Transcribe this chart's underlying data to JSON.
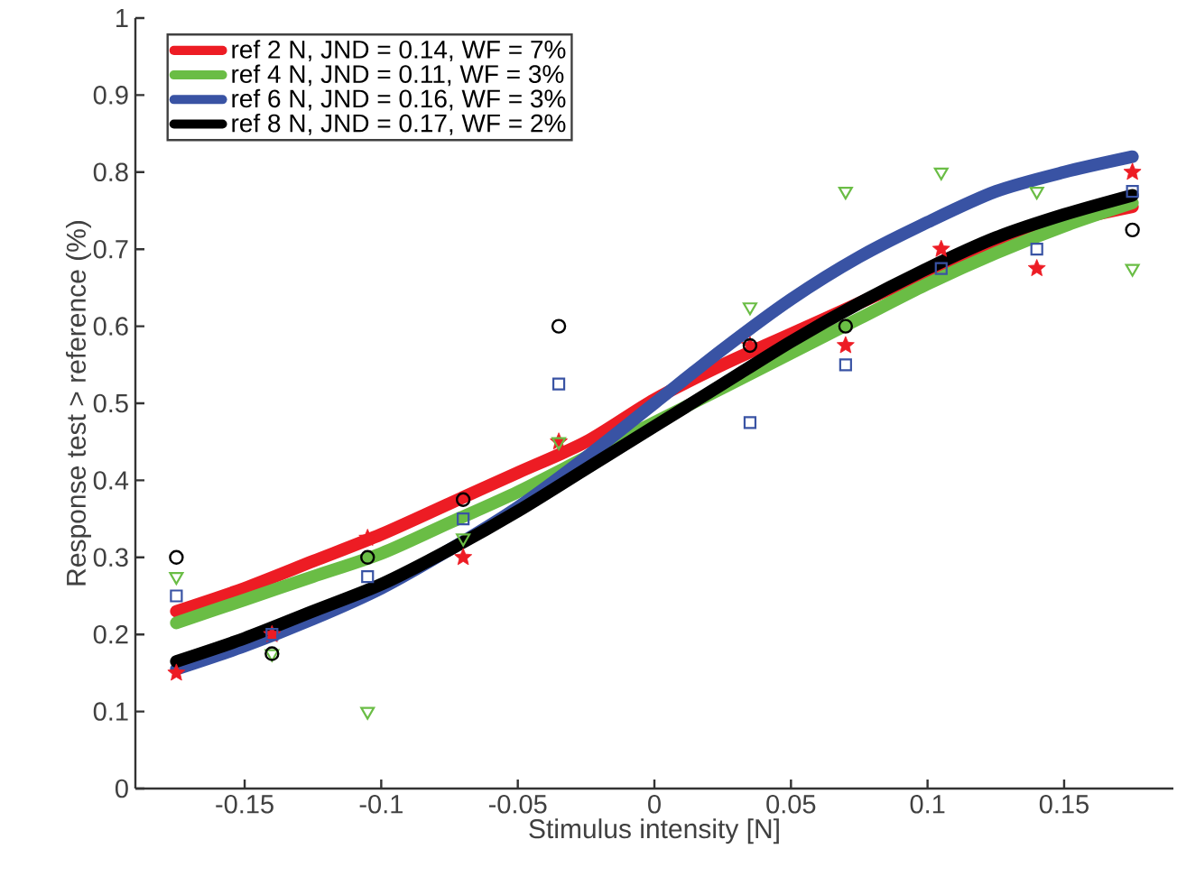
{
  "chart_data": {
    "type": "scatter",
    "xlabel": "Stimulus intensity [N]",
    "ylabel": "Response test > reference (%)",
    "xlim": [
      -0.19,
      0.19
    ],
    "ylim": [
      0,
      1
    ],
    "xticks": [
      -0.15,
      -0.1,
      -0.05,
      0,
      0.05,
      0.1,
      0.15
    ],
    "yticks": [
      0,
      0.1,
      0.2,
      0.3,
      0.4,
      0.5,
      0.6,
      0.7,
      0.8,
      0.9,
      1
    ],
    "legend": "top left",
    "series": [
      {
        "type": "line",
        "name": "ref 2 N, JND = 0.14, WF = 7%",
        "color": "#ed1c24",
        "marker": "none",
        "x": [
          -0.175,
          -0.15,
          -0.125,
          -0.1,
          -0.075,
          -0.05,
          -0.025,
          0,
          0.025,
          0.05,
          0.075,
          0.1,
          0.125,
          0.15,
          0.175
        ],
        "values": [
          0.23,
          0.26,
          0.295,
          0.33,
          0.37,
          0.41,
          0.45,
          0.505,
          0.55,
          0.59,
          0.63,
          0.67,
          0.705,
          0.735,
          0.755
        ]
      },
      {
        "type": "line",
        "name": "ref 4 N, JND = 0.11, WF = 3%",
        "color": "#6abd45",
        "marker": "none",
        "x": [
          -0.175,
          -0.15,
          -0.125,
          -0.1,
          -0.075,
          -0.05,
          -0.025,
          0,
          0.025,
          0.05,
          0.075,
          0.1,
          0.125,
          0.15,
          0.175
        ],
        "values": [
          0.215,
          0.245,
          0.275,
          0.305,
          0.345,
          0.385,
          0.43,
          0.475,
          0.52,
          0.565,
          0.61,
          0.655,
          0.695,
          0.73,
          0.76
        ]
      },
      {
        "type": "line",
        "name": "ref 6 N, JND = 0.16, WF = 3%",
        "color": "#3953a4",
        "marker": "none",
        "x": [
          -0.175,
          -0.15,
          -0.125,
          -0.1,
          -0.075,
          -0.05,
          -0.025,
          0,
          0.025,
          0.05,
          0.075,
          0.1,
          0.125,
          0.15,
          0.175
        ],
        "values": [
          0.155,
          0.185,
          0.22,
          0.26,
          0.31,
          0.365,
          0.43,
          0.5,
          0.57,
          0.635,
          0.69,
          0.735,
          0.775,
          0.8,
          0.82
        ]
      },
      {
        "type": "line",
        "name": "ref 8 N, JND = 0.17, WF = 2%",
        "color": "#000000",
        "marker": "none",
        "x": [
          -0.175,
          -0.15,
          -0.125,
          -0.1,
          -0.075,
          -0.05,
          -0.025,
          0,
          0.025,
          0.05,
          0.075,
          0.1,
          0.125,
          0.15,
          0.175
        ],
        "values": [
          0.165,
          0.195,
          0.23,
          0.265,
          0.31,
          0.36,
          0.415,
          0.47,
          0.525,
          0.58,
          0.63,
          0.675,
          0.715,
          0.745,
          0.77
        ]
      },
      {
        "color": "#ed1c24",
        "marker": "star",
        "x": [
          -0.175,
          -0.14,
          -0.105,
          -0.07,
          -0.035,
          0.035,
          0.07,
          0.105,
          0.14,
          0.175
        ],
        "values": [
          0.15,
          0.2,
          0.325,
          0.3,
          0.45,
          0.575,
          0.575,
          0.7,
          0.675,
          0.8
        ]
      },
      {
        "color": "#6abd45",
        "marker": "triangle",
        "x": [
          -0.175,
          -0.14,
          -0.105,
          -0.07,
          -0.035,
          0.035,
          0.07,
          0.105,
          0.14,
          0.175
        ],
        "values": [
          0.275,
          0.175,
          0.1,
          0.325,
          0.45,
          0.625,
          0.775,
          0.8,
          0.775,
          0.675
        ]
      },
      {
        "color": "#3953a4",
        "marker": "square",
        "x": [
          -0.175,
          -0.14,
          -0.105,
          -0.07,
          -0.035,
          0.035,
          0.07,
          0.105,
          0.14,
          0.175
        ],
        "values": [
          0.25,
          0.2,
          0.275,
          0.35,
          0.525,
          0.475,
          0.55,
          0.675,
          0.7,
          0.775
        ]
      },
      {
        "color": "#000000",
        "marker": "circle",
        "x": [
          -0.175,
          -0.14,
          -0.105,
          -0.07,
          -0.035,
          0.035,
          0.07,
          0.105,
          0.14,
          0.175
        ],
        "values": [
          0.3,
          0.175,
          0.3,
          0.375,
          0.6,
          0.575,
          0.6,
          null,
          null,
          0.725
        ]
      }
    ]
  }
}
